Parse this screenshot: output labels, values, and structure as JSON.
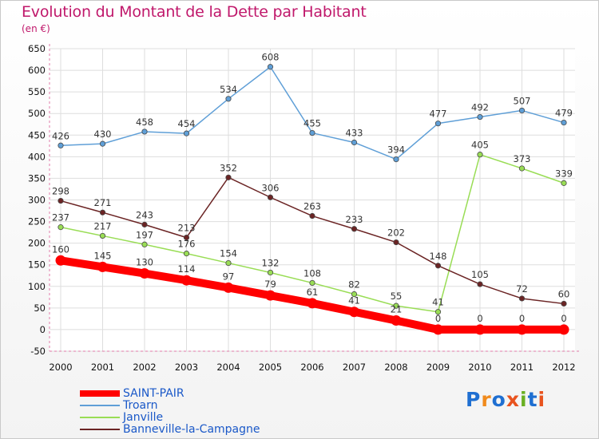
{
  "title": "Evolution du Montant de la Dette par Habitant",
  "subtitle": "(en €)",
  "brand": {
    "text": "Proxiti",
    "colors": [
      "#1f6fd1",
      "#f08a1c",
      "#1f6fd1",
      "#e8531e",
      "#6ab023",
      "#1f6fd1",
      "#e8531e"
    ]
  },
  "chart_data": {
    "type": "line",
    "x": [
      "2000",
      "2001",
      "2002",
      "2003",
      "2004",
      "2005",
      "2006",
      "2007",
      "2008",
      "2009",
      "2010",
      "2011",
      "2012"
    ],
    "ylim": [
      -50,
      650
    ],
    "yticks": [
      -50,
      0,
      50,
      100,
      150,
      200,
      250,
      300,
      350,
      400,
      450,
      500,
      550,
      600,
      650
    ],
    "grid": true,
    "series": [
      {
        "name": "SAINT-PAIR",
        "color": "#ff0000",
        "values": [
          160,
          145,
          130,
          114,
          97,
          79,
          61,
          41,
          21,
          0,
          0,
          0,
          0
        ],
        "labels": [
          "160",
          "145",
          "130",
          "114",
          "97",
          "79",
          "61",
          "41",
          "21",
          "0",
          "0",
          "0",
          "0"
        ]
      },
      {
        "name": "Troarn",
        "color": "#5f9fd7",
        "values": [
          426,
          430,
          458,
          454,
          534,
          608,
          455,
          433,
          394,
          477,
          492,
          507,
          479
        ],
        "labels": [
          "426",
          "430",
          "458",
          "454",
          "534",
          "608",
          "455",
          "433",
          "394",
          "477",
          "492",
          "507",
          "479"
        ]
      },
      {
        "name": "Janville",
        "color": "#99dd55",
        "values": [
          237,
          217,
          197,
          176,
          154,
          132,
          108,
          82,
          55,
          41,
          405,
          373,
          339
        ],
        "labels": [
          "237",
          "217",
          "197",
          "176",
          "154",
          "132",
          "108",
          "82",
          "55",
          "41",
          "405",
          "373",
          "339"
        ]
      },
      {
        "name": "Banneville-la-Campagne",
        "color": "#6b2424",
        "values": [
          298,
          271,
          243,
          213,
          352,
          306,
          263,
          233,
          202,
          148,
          105,
          72,
          60
        ],
        "labels": [
          "298",
          "271",
          "243",
          "213",
          "352",
          "306",
          "263",
          "233",
          "202",
          "148",
          "105",
          "72",
          "60"
        ]
      }
    ]
  }
}
